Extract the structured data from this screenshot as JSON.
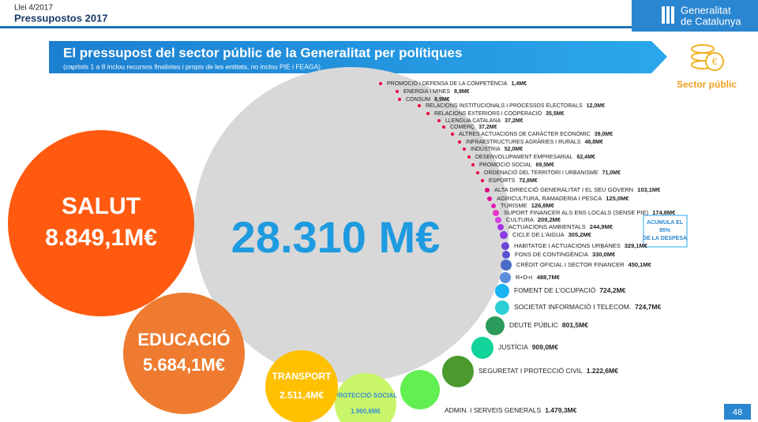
{
  "header": {
    "law": "Llei 4/2017",
    "title": "Pressupostos 2017",
    "brand": [
      "Generalitat",
      "de Catalunya"
    ],
    "section": "Sector públic",
    "page": "48"
  },
  "chart_data": {
    "type": "bubble",
    "title": "El pressupost del sector públic de la Generalitat per polítiques",
    "subtitle": "(capítols 1 a 8 inclou recursos finalistes i propis de les entitats, no inclou PIE i FEAGA)",
    "total": 28310,
    "total_label": "28.310 M€",
    "annotation": [
      "ACUMULA EL",
      "95%",
      "DE LA DESPESA"
    ],
    "categories": [
      "PROMOCIÓ I DEFENSA DE LA COMPETÈNCIA",
      "ENERGIA I MINES",
      "CONSUM",
      "RELACIONS INSTITUCIONALS I PROCESSOS ELECTORALS",
      "RELACIONS EXTERIORS I COOPERACIÓ",
      "LLENGUA CATALANA",
      "COMERÇ",
      "ALTRES ACTUACIONS DE CARÀCTER ECONÒMIC",
      "INFRAESTRUCTURES AGRÀRIES I RURALS",
      "INDÚSTRIA",
      "DESENVOLUPAMENT EMPRESARIAL",
      "PROMOCIÓ SOCIAL",
      "ORDENACIÓ DEL TERRITORI I URBANISME",
      "ESPORTS",
      "ALTA DIRECCIÓ GENERALITAT I EL SEU GOVERN",
      "AGRICULTURA, RAMADERIA I PESCA",
      "TURISME",
      "SUPORT FINANCER ALS ENS LOCALS (SENSE PIE)",
      "CULTURA",
      "ACTUACIONS AMBIENTALS",
      "CICLE DE L'AIGUA",
      "HABITATGE I ACTUACIONS URBANES",
      "FONS DE CONTINGÈNCIA",
      "CRÈDIT OFICIAL I SECTOR FINANCER",
      "R+D+I",
      "FOMENT DE L'OCUPACIÓ",
      "SOCIETAT INFORMACIÓ I TELECOM.",
      "DEUTE PÚBLIC",
      "JUSTÍCIA",
      "SEGURETAT I PROTECCIÓ CIVIL",
      "ADMIN. I SERVEIS GENERALS",
      "PROTECCIÓ SOCIAL",
      "TRANSPORT",
      "EDUCACIÓ",
      "SALUT"
    ],
    "values": [
      1.4,
      8.9,
      8.9,
      12.0,
      35.5,
      37.2,
      37.2,
      39.0,
      48.8,
      52.0,
      62.4,
      69.5,
      71.0,
      72.8,
      103.1,
      125.0,
      126.8,
      174.8,
      209.2,
      244.9,
      305.2,
      329.1,
      330.0,
      450.1,
      488.7,
      724.2,
      724.7,
      801.5,
      909.0,
      1222.6,
      1479.3,
      1960.6,
      2511.4,
      5684.1,
      8849.1
    ],
    "value_labels": [
      "1,4M€",
      "8,9M€",
      "8,9M€",
      "12,0M€",
      "35,5M€",
      "37,2M€",
      "37,2M€",
      "39,0M€",
      "48,8M€",
      "52,0M€",
      "62,4M€",
      "69,5M€",
      "71,0M€",
      "72,8M€",
      "103,1M€",
      "125,0M€",
      "126,8M€",
      "174,8M€",
      "209,2M€",
      "244,9M€",
      "305,2M€",
      "329,1M€",
      "330,0M€",
      "450,1M€",
      "488,7M€",
      "724,2M€",
      "724,7M€",
      "801,5M€",
      "909,0M€",
      "1.222,6M€",
      "1.479,3M€",
      "1.960,6M€",
      "2.511,4M€",
      "5.684,1M€",
      "8.849,1M€"
    ],
    "colors": [
      "#e8003d",
      "#e8003d",
      "#e8003d",
      "#e8003d",
      "#e8003d",
      "#e8003d",
      "#e8003d",
      "#e8003d",
      "#e8003d",
      "#e8003d",
      "#e8003d",
      "#e8003d",
      "#e8003d",
      "#e8003d",
      "#d6007a",
      "#e0109a",
      "#e21eb0",
      "#e838c8",
      "#d840e0",
      "#a634e8",
      "#8a3ae6",
      "#6a44d8",
      "#5a50d0",
      "#4a6ac8",
      "#5a8ed8",
      "#16b4f0",
      "#2ccfd6",
      "#2c9a5a",
      "#12d39a",
      "#4a9a2e",
      "#62ef52",
      "#c8f56a",
      "#ffc000",
      "#ee7b30",
      "#ff5a10"
    ]
  }
}
